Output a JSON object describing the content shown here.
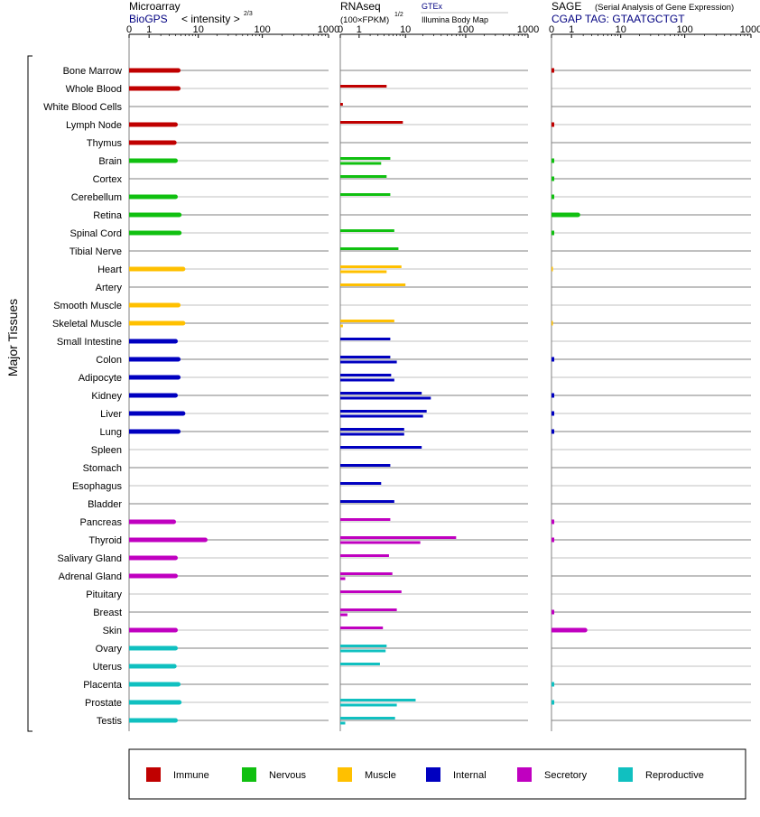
{
  "headers": {
    "microarray": {
      "title": "Microarray",
      "source": "BioGPS",
      "unit": "< intensity >",
      "unit_sup": "2/3"
    },
    "rnaseq": {
      "title": "RNAseq",
      "unit": "(100×FPKM)",
      "unit_sup": "1/2",
      "source": "GTEx",
      "source2": "Illumina Body Map"
    },
    "sage": {
      "title": "SAGE",
      "subtitle": "(Serial Analysis of Gene Expression)",
      "tag": "CGAP TAG: GTAATGCTGT"
    }
  },
  "axis_label": "Major Tissues",
  "ticks": [
    "0",
    "1",
    "10",
    "100",
    "1000"
  ],
  "legend": [
    {
      "label": "Immune",
      "color": "#c00000"
    },
    {
      "label": "Nervous",
      "color": "#10c010"
    },
    {
      "label": "Muscle",
      "color": "#ffc000"
    },
    {
      "label": "Internal",
      "color": "#0000c0"
    },
    {
      "label": "Secretory",
      "color": "#c000c0"
    },
    {
      "label": "Reproductive",
      "color": "#10c0c0"
    }
  ],
  "chart_data": {
    "type": "bar",
    "scale": "log10(1+x), axis 0–1000",
    "xlim": [
      0,
      1000
    ],
    "categories": [
      "Bone Marrow",
      "Whole Blood",
      "White Blood Cells",
      "Lymph Node",
      "Thymus",
      "Brain",
      "Cortex",
      "Cerebellum",
      "Retina",
      "Spinal Cord",
      "Tibial Nerve",
      "Heart",
      "Artery",
      "Smooth Muscle",
      "Skeletal Muscle",
      "Small Intestine",
      "Colon",
      "Adipocyte",
      "Kidney",
      "Liver",
      "Lung",
      "Spleen",
      "Stomach",
      "Esophagus",
      "Bladder",
      "Pancreas",
      "Thyroid",
      "Salivary Gland",
      "Adrenal Gland",
      "Pituitary",
      "Breast",
      "Skin",
      "Ovary",
      "Uterus",
      "Placenta",
      "Prostate",
      "Testis"
    ],
    "systems": [
      "Immune",
      "Immune",
      "Immune",
      "Immune",
      "Immune",
      "Nervous",
      "Nervous",
      "Nervous",
      "Nervous",
      "Nervous",
      "Nervous",
      "Muscle",
      "Muscle",
      "Muscle",
      "Muscle",
      "Internal",
      "Internal",
      "Internal",
      "Internal",
      "Internal",
      "Internal",
      "Internal",
      "Internal",
      "Internal",
      "Internal",
      "Secretory",
      "Secretory",
      "Secretory",
      "Secretory",
      "Secretory",
      "Secretory",
      "Secretory",
      "Reproductive",
      "Reproductive",
      "Reproductive",
      "Reproductive",
      "Reproductive"
    ],
    "series": [
      {
        "name": "Microarray",
        "values": [
          4.5,
          4.5,
          null,
          4,
          3.8,
          4,
          null,
          4,
          4.7,
          4.7,
          null,
          5.5,
          null,
          4.5,
          5.5,
          4,
          4.5,
          4.5,
          4,
          5.5,
          4.5,
          null,
          null,
          null,
          null,
          3.7,
          13,
          4,
          4,
          null,
          null,
          4,
          4,
          3.8,
          4.5,
          4.7,
          4
        ]
      },
      {
        "name": "GTEx",
        "values": [
          null,
          4.5,
          0.1,
          9,
          null,
          5.3,
          4.5,
          5.3,
          null,
          6.3,
          7.5,
          8.5,
          10,
          null,
          6.3,
          5.3,
          5.3,
          5.5,
          19,
          23,
          9.5,
          19,
          5.3,
          3.5,
          6.3,
          5.3,
          70,
          5,
          5.8,
          8.5,
          7,
          3.8,
          4.5,
          3.3,
          null,
          15,
          6.5
        ]
      },
      {
        "name": "Illumina Body Map",
        "values": [
          null,
          null,
          null,
          null,
          null,
          3.5,
          null,
          null,
          null,
          null,
          null,
          4.5,
          null,
          null,
          0.1,
          null,
          7,
          6.3,
          27,
          20,
          9.5,
          null,
          null,
          null,
          null,
          null,
          18,
          null,
          0.2,
          null,
          0.3,
          null,
          4.3,
          null,
          null,
          7,
          0.2
        ]
      },
      {
        "name": "SAGE",
        "values": [
          0.1,
          null,
          null,
          0.1,
          null,
          0.1,
          0.1,
          0.1,
          1.5,
          0.1,
          null,
          0.05,
          null,
          null,
          0.05,
          null,
          0.1,
          null,
          0.1,
          0.1,
          0.1,
          null,
          null,
          null,
          null,
          0.1,
          0.1,
          null,
          null,
          null,
          0.1,
          2.2,
          null,
          null,
          0.1,
          0.1,
          null
        ]
      }
    ]
  }
}
